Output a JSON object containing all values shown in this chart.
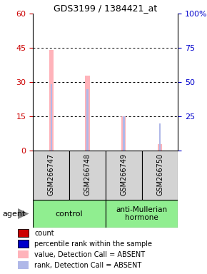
{
  "title": "GDS3199 / 1384421_at",
  "samples": [
    "GSM266747",
    "GSM266748",
    "GSM266749",
    "GSM266750"
  ],
  "bar_values_absent": [
    44,
    33,
    15,
    3
  ],
  "rank_values_absent": [
    29,
    27,
    15,
    12
  ],
  "ylim_left": [
    0,
    60
  ],
  "ylim_right": [
    0,
    100
  ],
  "yticks_left": [
    0,
    15,
    30,
    45,
    60
  ],
  "yticks_right": [
    0,
    25,
    50,
    75,
    100
  ],
  "color_bar_absent": "#ffb3ba",
  "color_rank_absent": "#b0b8e8",
  "color_count": "#cc0000",
  "color_rank": "#0000cc",
  "legend_items": [
    {
      "label": "count",
      "color": "#cc0000"
    },
    {
      "label": "percentile rank within the sample",
      "color": "#0000cc"
    },
    {
      "label": "value, Detection Call = ABSENT",
      "color": "#ffb3ba"
    },
    {
      "label": "rank, Detection Call = ABSENT",
      "color": "#b0b8e8"
    }
  ],
  "group_label_control": "control",
  "group_label_treatment": "anti-Mullerian\nhormone",
  "agent_label": "agent"
}
